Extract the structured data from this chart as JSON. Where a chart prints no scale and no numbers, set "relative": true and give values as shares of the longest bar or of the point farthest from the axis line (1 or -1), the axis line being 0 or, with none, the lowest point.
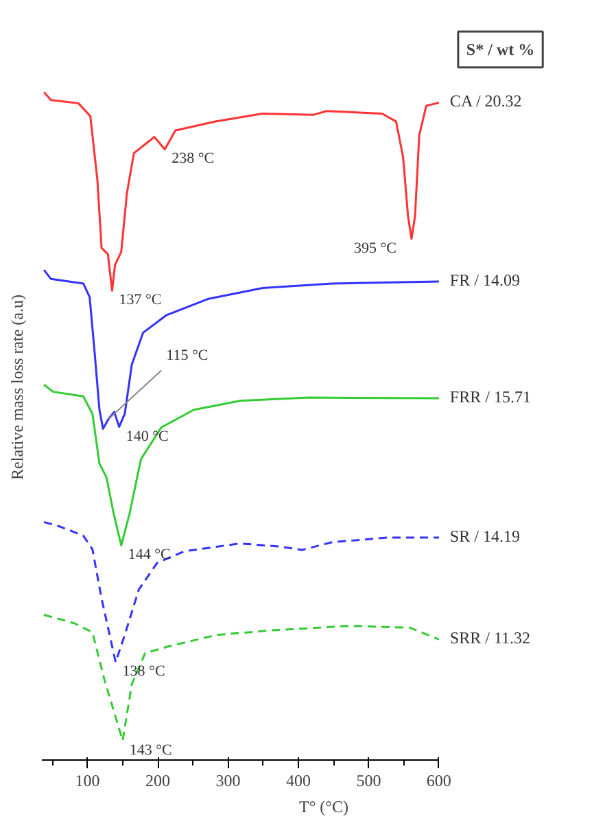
{
  "chart_data": {
    "type": "line",
    "relative": true,
    "xlabel": "T° (°C)",
    "ylabel": "Relative mass loss rate (a.u)",
    "legend_title": "S* / wt %",
    "xlim": [
      35,
      600
    ],
    "xticks": [
      100,
      200,
      300,
      400,
      500,
      600
    ],
    "grid": false,
    "marker": "none",
    "series": [
      {
        "name": "CA / 20.32",
        "color": "#ff3333",
        "line_style": "solid",
        "x": [
          38,
          48,
          87,
          104,
          114,
          120,
          129,
          135,
          139,
          148,
          156,
          166,
          195,
          210,
          225,
          283,
          349,
          421,
          440,
          519,
          539,
          549,
          556,
          561,
          566,
          572,
          582,
          600
        ],
        "values": [
          1.0,
          0.988,
          0.983,
          0.963,
          0.865,
          0.76,
          0.75,
          0.694,
          0.733,
          0.754,
          0.844,
          0.906,
          0.931,
          0.912,
          0.941,
          0.955,
          0.967,
          0.965,
          0.971,
          0.967,
          0.955,
          0.9,
          0.809,
          0.774,
          0.809,
          0.934,
          0.979,
          0.984
        ]
      },
      {
        "name": "FR / 14.09",
        "color": "#3333ff",
        "line_style": "solid",
        "x": [
          38,
          48,
          94,
          103,
          110,
          117,
          122,
          130,
          138,
          145,
          153,
          163,
          179,
          212,
          271,
          349,
          448,
          600
        ],
        "values": [
          0.726,
          0.712,
          0.705,
          0.684,
          0.6,
          0.51,
          0.481,
          0.496,
          0.507,
          0.484,
          0.504,
          0.58,
          0.629,
          0.656,
          0.681,
          0.698,
          0.705,
          0.708
        ]
      },
      {
        "name": "FRR / 15.71",
        "color": "#33cc33",
        "line_style": "solid",
        "x": [
          38,
          51,
          94,
          107,
          117,
          127,
          137,
          148,
          160,
          176,
          205,
          251,
          317,
          415,
          600
        ],
        "values": [
          0.549,
          0.538,
          0.531,
          0.504,
          0.427,
          0.406,
          0.351,
          0.301,
          0.351,
          0.434,
          0.483,
          0.51,
          0.524,
          0.529,
          0.528
        ]
      },
      {
        "name": "SR / 14.19",
        "color": "#3333ff",
        "line_style": "dashed",
        "x": [
          38,
          61,
          94,
          107,
          120,
          140,
          153,
          173,
          199,
          238,
          317,
          376,
          405,
          448,
          526,
          600
        ],
        "values": [
          0.337,
          0.33,
          0.316,
          0.295,
          0.219,
          0.121,
          0.163,
          0.233,
          0.274,
          0.292,
          0.304,
          0.299,
          0.294,
          0.306,
          0.313,
          0.313
        ]
      },
      {
        "name": "SRR / 11.32",
        "color": "#33cc33",
        "line_style": "dashed",
        "x": [
          38,
          81,
          107,
          124,
          150,
          163,
          182,
          218,
          284,
          362,
          474,
          559,
          600
        ],
        "values": [
          0.194,
          0.181,
          0.167,
          0.094,
          0.0,
          0.087,
          0.135,
          0.146,
          0.163,
          0.17,
          0.177,
          0.174,
          0.156
        ]
      }
    ],
    "annotations": [
      {
        "text": "238 °C",
        "x": 210,
        "y": 0.912
      },
      {
        "text": "395 °C",
        "x": 561,
        "y": 0.774
      },
      {
        "text": "137 °C",
        "x": 135,
        "y": 0.694
      },
      {
        "text": "115 °C",
        "x": 130,
        "y": 0.496
      },
      {
        "text": "140 °C",
        "x": 145,
        "y": 0.484
      },
      {
        "text": "144 °C",
        "x": 148,
        "y": 0.301
      },
      {
        "text": "138 °C",
        "x": 140,
        "y": 0.121
      },
      {
        "text": "143 °C",
        "x": 150,
        "y": 0.0
      }
    ]
  }
}
